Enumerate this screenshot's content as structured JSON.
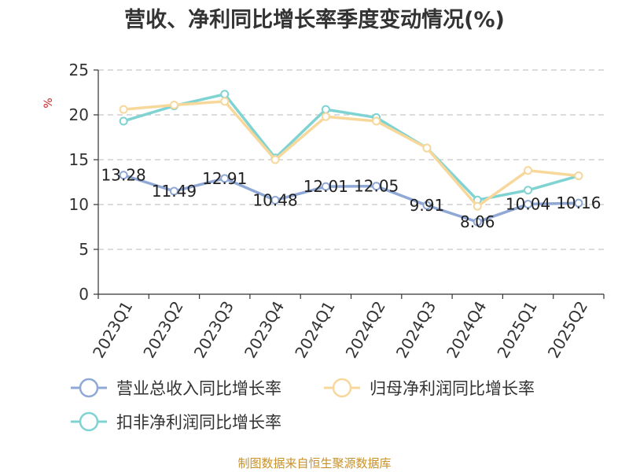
{
  "chart_data": {
    "type": "line",
    "title": "营收、净利同比增长率季度变动情况(%)",
    "ylabel": "%",
    "xlabel": "",
    "ylim": [
      0,
      25
    ],
    "yticks": [
      0,
      5,
      10,
      15,
      20,
      25
    ],
    "grid": true,
    "legend_position": "bottom",
    "categories": [
      "2023Q1",
      "2023Q2",
      "2023Q3",
      "2023Q4",
      "2024Q1",
      "2024Q2",
      "2024Q3",
      "2024Q4",
      "2025Q1",
      "2025Q2"
    ],
    "series": [
      {
        "name": "营业总收入同比增长率",
        "color": "#8fa8d6",
        "values": [
          13.28,
          11.49,
          12.91,
          10.48,
          12.01,
          12.05,
          9.91,
          8.06,
          10.04,
          10.16
        ],
        "labels_shown": true
      },
      {
        "name": "归母净利润同比增长率",
        "color": "#f8d79b",
        "values": [
          20.6,
          21.1,
          21.5,
          15.0,
          19.8,
          19.3,
          16.3,
          9.8,
          13.8,
          13.2
        ],
        "labels_shown": false
      },
      {
        "name": "扣非净利润同比增长率",
        "color": "#7fd3d3",
        "values": [
          19.3,
          21.0,
          22.3,
          15.2,
          20.6,
          19.7,
          16.3,
          10.5,
          11.6,
          13.2
        ],
        "labels_shown": false
      }
    ],
    "source": "制图数据来自恒生聚源数据库"
  }
}
